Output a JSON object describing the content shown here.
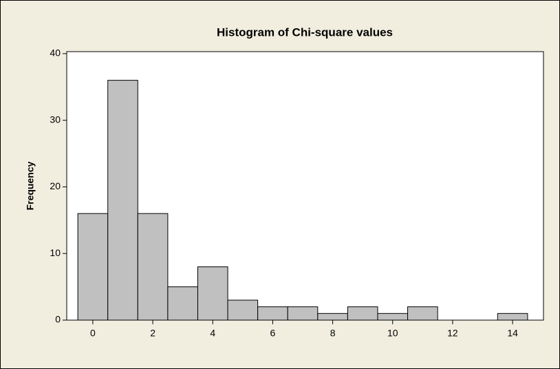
{
  "chart_data": {
    "type": "histogram",
    "title": "Histogram of Chi-square values",
    "y_label": "Frequency",
    "bins": [
      -0.5,
      0.5,
      1.5,
      2.5,
      3.5,
      4.5,
      5.5,
      6.5,
      7.5,
      8.5,
      9.5,
      10.5,
      11.5,
      12.5,
      13.5,
      14.5
    ],
    "values": [
      16,
      36,
      16,
      5,
      8,
      3,
      2,
      2,
      1,
      2,
      1,
      2,
      0,
      0,
      1
    ],
    "color": "#c0c0c0",
    "xlim": [
      -0.87,
      15.03
    ],
    "xticks": [
      0,
      2,
      4,
      6,
      8,
      10,
      12,
      14
    ],
    "ylim": [
      0,
      40.3
    ],
    "yticks": [
      0,
      10,
      20,
      30,
      40
    ]
  }
}
